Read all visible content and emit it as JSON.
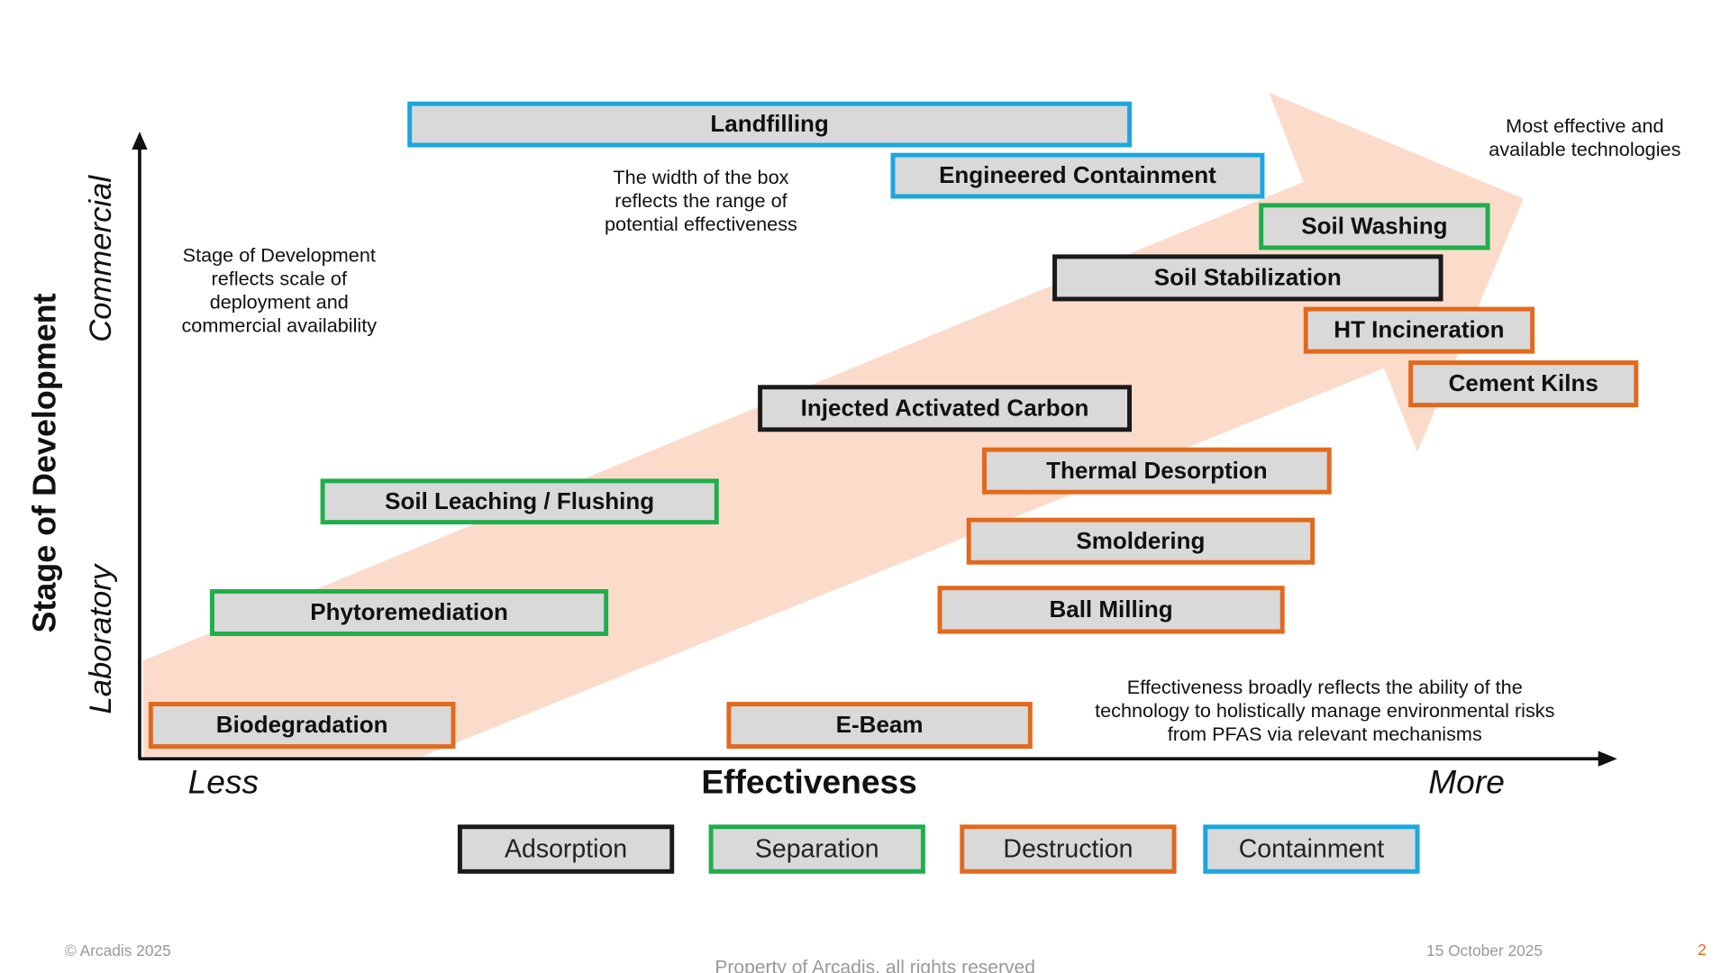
{
  "axes": {
    "y_title": "Stage of Development",
    "y_high": "Commercial",
    "y_low": "Laboratory",
    "x_title": "Effectiveness",
    "x_low": "Less",
    "x_high": "More"
  },
  "notes": {
    "width": [
      "The width of the box",
      "reflects the range of",
      "potential effectiveness"
    ],
    "stage": [
      "Stage of Development",
      "reflects scale of",
      "deployment and",
      "commercial availability"
    ],
    "most": [
      "Most effective and",
      "available technologies"
    ],
    "effectiveness": [
      "Effectiveness broadly reflects the ability of the",
      "technology to holistically manage environmental risks",
      "from PFAS via relevant mechanisms"
    ]
  },
  "technologies": [
    {
      "label": "Landfilling",
      "category": 3
    },
    {
      "label": "Engineered Containment",
      "category": 3
    },
    {
      "label": "Soil Washing",
      "category": 1
    },
    {
      "label": "Soil Stabilization",
      "category": 0
    },
    {
      "label": "HT Incineration",
      "category": 2
    },
    {
      "label": "Cement Kilns",
      "category": 2
    },
    {
      "label": "Injected Activated Carbon",
      "category": 0
    },
    {
      "label": "Thermal Desorption",
      "category": 2
    },
    {
      "label": "Soil Leaching / Flushing",
      "category": 1
    },
    {
      "label": "Smoldering",
      "category": 2
    },
    {
      "label": "Phytoremediation",
      "category": 1
    },
    {
      "label": "Ball Milling",
      "category": 2
    },
    {
      "label": "Biodegradation",
      "category": 2
    },
    {
      "label": "E-Beam",
      "category": 2
    }
  ],
  "legend": [
    {
      "label": "Adsorption",
      "color": "#1a1a1a"
    },
    {
      "label": "Separation",
      "color": "#1fae4b"
    },
    {
      "label": "Destruction",
      "color": "#e2691d"
    },
    {
      "label": "Containment",
      "color": "#1aa7e0"
    }
  ],
  "footer": {
    "copyright": "© Arcadis 2025",
    "property": "Property of Arcadis, all rights reserved",
    "date": "15 October 2025",
    "page": "2"
  }
}
